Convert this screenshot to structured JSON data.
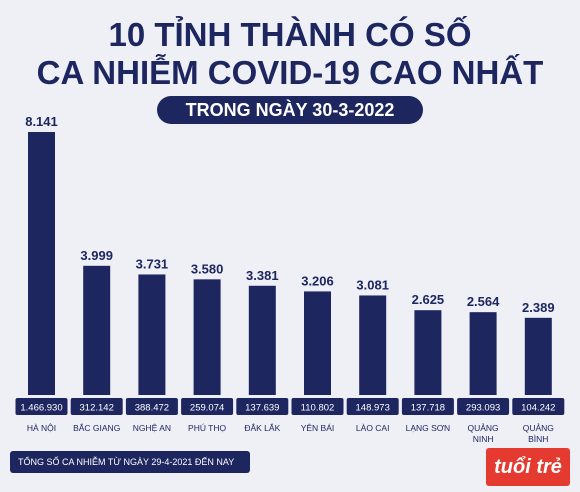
{
  "header": {
    "title_line1": "10 TỈNH THÀNH CÓ SỐ",
    "title_line2": "CA NHIỄM COVID-19 CAO NHẤT",
    "subtitle": "TRONG NGÀY 30-3-2022"
  },
  "legend": {
    "label": "TỔNG SỐ CA NHIỄM TỪ NGÀY 29-4-2021 ĐẾN NAY"
  },
  "brand": {
    "logo_text": "tuổi trẻ"
  },
  "colors": {
    "bar": "#1e2660",
    "title": "#1e2660",
    "accent": "#e53a2f",
    "background": "#eef0f5"
  },
  "chart_data": {
    "type": "bar",
    "categories": [
      "HÀ NỘI",
      "BẮC GIANG",
      "NGHỆ AN",
      "PHÚ THỌ",
      "ĐẮK LẮK",
      "YÊN BÁI",
      "LÀO CAI",
      "LẠNG SƠN",
      "QUẢNG NINH",
      "QUẢNG BÌNH"
    ],
    "values": [
      8141,
      3999,
      3731,
      3580,
      3381,
      3206,
      3081,
      2625,
      2564,
      2389
    ],
    "value_labels": [
      "8.141",
      "3.999",
      "3.731",
      "3.580",
      "3.381",
      "3.206",
      "3.081",
      "2.625",
      "2.564",
      "2.389"
    ],
    "totals": [
      1466930,
      312142,
      388472,
      259074,
      137639,
      110802,
      148973,
      137718,
      293093,
      104242
    ],
    "total_labels": [
      "1.466.930",
      "312.142",
      "388.472",
      "259.074",
      "137.639",
      "110.802",
      "148.973",
      "137.718",
      "293.093",
      "104.242"
    ],
    "title": "10 TỈNH THÀNH CÓ SỐ CA NHIỄM COVID-19 CAO NHẤT",
    "subtitle": "TRONG NGÀY 30-3-2022",
    "xlabel": "",
    "ylabel": "",
    "ylim": [
      0,
      8141
    ],
    "grid": false,
    "legend_position": "bottom-left"
  }
}
